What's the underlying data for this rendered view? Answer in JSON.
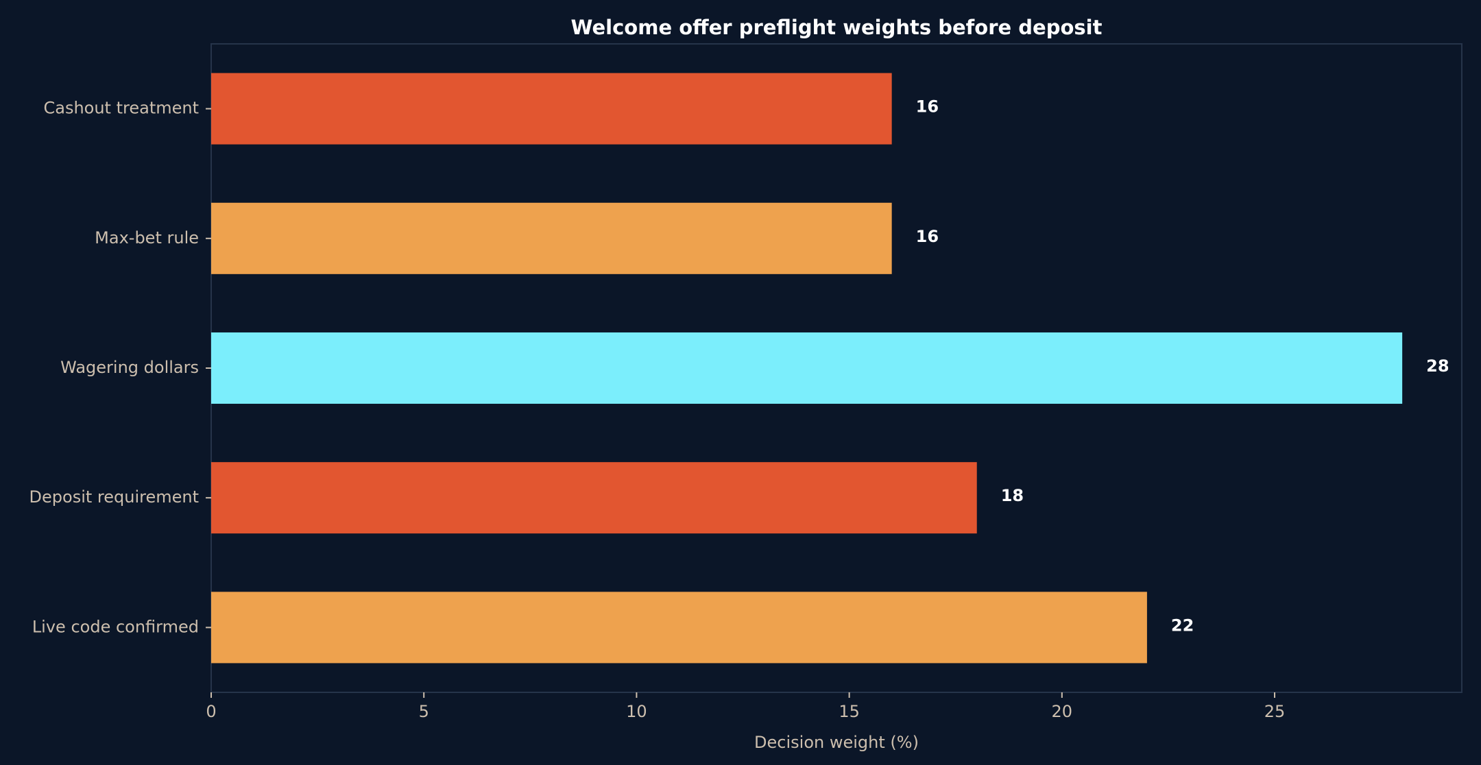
{
  "chart_data": {
    "type": "bar",
    "orientation": "horizontal",
    "title": "Welcome offer preflight weights before deposit",
    "xlabel": "Decision weight (%)",
    "ylabel": "",
    "categories": [
      "Cashout treatment",
      "Max-bet rule",
      "Wagering dollars",
      "Deposit requirement",
      "Live code confirmed"
    ],
    "values": [
      16,
      16,
      28,
      18,
      22
    ],
    "value_labels": [
      "16",
      "16",
      "28",
      "18",
      "22"
    ],
    "bar_colors": [
      "#e25630",
      "#eea24e",
      "#7beefc",
      "#e25630",
      "#eea24e"
    ],
    "xlim": [
      0,
      29.4
    ],
    "xticks": [
      0,
      5,
      10,
      15,
      20,
      25
    ],
    "xtick_labels": [
      "0",
      "5",
      "10",
      "15",
      "20",
      "25"
    ],
    "grid": false,
    "legend": "none",
    "colors": {
      "background": "#0b1628",
      "frame": "#26344a",
      "text": "#cdbfae",
      "title": "#ffffff"
    }
  }
}
